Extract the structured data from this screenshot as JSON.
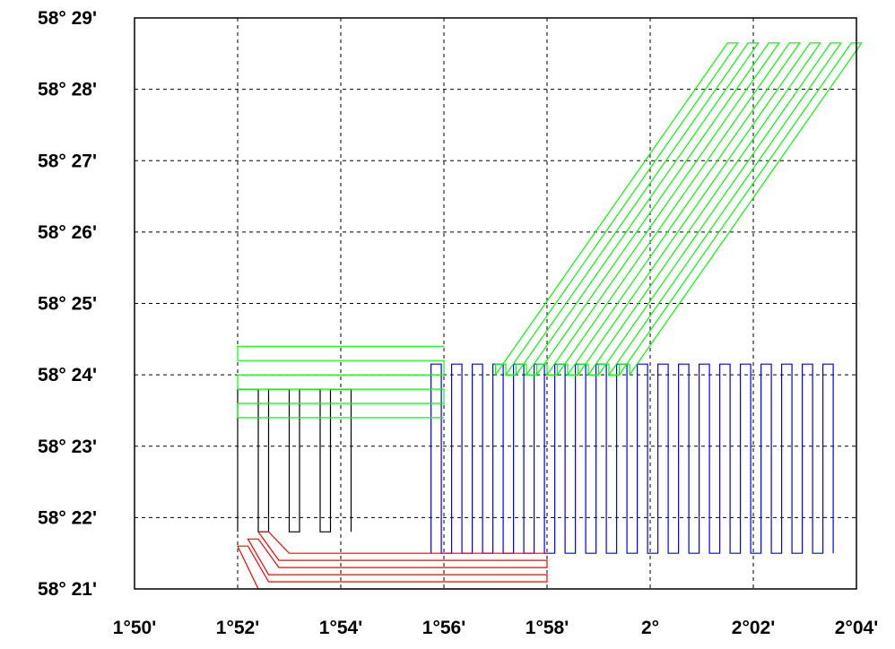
{
  "chart_data": {
    "type": "line",
    "title": "",
    "xlabel": "",
    "ylabel": "",
    "x_unit": "arcminutes of longitude past 1°50'",
    "y_unit": "arcminutes of latitude past 58°21'",
    "xlim": [
      0,
      14
    ],
    "ylim": [
      0,
      8
    ],
    "grid": true,
    "x_ticks": [
      {
        "value": 0,
        "label": "1°50'"
      },
      {
        "value": 2,
        "label": "1°52'"
      },
      {
        "value": 4,
        "label": "1°54'"
      },
      {
        "value": 6,
        "label": "1°56'"
      },
      {
        "value": 8,
        "label": "1°58'"
      },
      {
        "value": 10,
        "label": "2°"
      },
      {
        "value": 12,
        "label": "2°02'"
      },
      {
        "value": 14,
        "label": "2°04'"
      }
    ],
    "y_ticks": [
      {
        "value": 0,
        "label": "58° 21'"
      },
      {
        "value": 1,
        "label": "58° 22'"
      },
      {
        "value": 2,
        "label": "58° 23'"
      },
      {
        "value": 3,
        "label": "58° 24'"
      },
      {
        "value": 4,
        "label": "58° 25'"
      },
      {
        "value": 5,
        "label": "58° 26'"
      },
      {
        "value": 6,
        "label": "58° 27'"
      },
      {
        "value": 7,
        "label": "58° 28'"
      },
      {
        "value": 8,
        "label": "58° 29'"
      }
    ],
    "series": [
      {
        "color": "#000000",
        "points": [
          [
            2.0,
            0.8
          ],
          [
            2.0,
            2.8
          ],
          [
            2.4,
            2.8
          ],
          [
            2.4,
            0.8
          ],
          [
            2.6,
            0.8
          ],
          [
            2.6,
            2.8
          ],
          [
            3.0,
            2.8
          ],
          [
            3.0,
            0.8
          ],
          [
            3.2,
            0.8
          ],
          [
            3.2,
            2.8
          ],
          [
            3.6,
            2.8
          ],
          [
            3.6,
            0.8
          ],
          [
            3.8,
            0.8
          ],
          [
            3.8,
            2.8
          ],
          [
            4.2,
            2.8
          ],
          [
            4.2,
            0.8
          ]
        ]
      },
      {
        "color": "#0000ff",
        "points": [
          [
            5.75,
            0.5
          ],
          [
            5.75,
            3.15
          ],
          [
            5.95,
            3.15
          ],
          [
            5.95,
            0.5
          ],
          [
            6.15,
            0.5
          ],
          [
            6.15,
            3.15
          ],
          [
            6.35,
            3.15
          ],
          [
            6.35,
            0.5
          ],
          [
            6.55,
            0.5
          ],
          [
            6.55,
            3.15
          ],
          [
            6.75,
            3.15
          ],
          [
            6.75,
            0.5
          ],
          [
            6.95,
            0.5
          ],
          [
            6.95,
            3.15
          ],
          [
            7.15,
            3.15
          ],
          [
            7.15,
            0.5
          ],
          [
            7.35,
            0.5
          ],
          [
            7.35,
            3.15
          ],
          [
            7.55,
            3.15
          ],
          [
            7.55,
            0.5
          ],
          [
            7.75,
            0.5
          ],
          [
            7.75,
            3.15
          ],
          [
            7.95,
            3.15
          ],
          [
            7.95,
            0.5
          ],
          [
            8.15,
            0.5
          ],
          [
            8.15,
            3.15
          ],
          [
            8.35,
            3.15
          ],
          [
            8.35,
            0.5
          ],
          [
            8.55,
            0.5
          ],
          [
            8.55,
            3.15
          ],
          [
            8.75,
            3.15
          ],
          [
            8.75,
            0.5
          ],
          [
            8.95,
            0.5
          ],
          [
            8.95,
            3.15
          ],
          [
            9.15,
            3.15
          ],
          [
            9.15,
            0.5
          ],
          [
            9.35,
            0.5
          ],
          [
            9.35,
            3.15
          ],
          [
            9.55,
            3.15
          ],
          [
            9.55,
            0.5
          ],
          [
            9.75,
            0.5
          ],
          [
            9.75,
            3.15
          ],
          [
            9.95,
            3.15
          ],
          [
            9.95,
            0.5
          ],
          [
            10.15,
            0.5
          ],
          [
            10.15,
            3.15
          ],
          [
            10.35,
            3.15
          ],
          [
            10.35,
            0.5
          ],
          [
            10.55,
            0.5
          ],
          [
            10.55,
            3.15
          ],
          [
            10.75,
            3.15
          ],
          [
            10.75,
            0.5
          ],
          [
            10.95,
            0.5
          ],
          [
            10.95,
            3.15
          ],
          [
            11.15,
            3.15
          ],
          [
            11.15,
            0.5
          ],
          [
            11.35,
            0.5
          ],
          [
            11.35,
            3.15
          ],
          [
            11.55,
            3.15
          ],
          [
            11.55,
            0.5
          ],
          [
            11.75,
            0.5
          ],
          [
            11.75,
            3.15
          ],
          [
            11.95,
            3.15
          ],
          [
            11.95,
            0.5
          ],
          [
            12.15,
            0.5
          ],
          [
            12.15,
            3.15
          ],
          [
            12.35,
            3.15
          ],
          [
            12.35,
            0.5
          ],
          [
            12.55,
            0.5
          ],
          [
            12.55,
            3.15
          ],
          [
            12.75,
            3.15
          ],
          [
            12.75,
            0.5
          ],
          [
            12.95,
            0.5
          ],
          [
            12.95,
            3.15
          ],
          [
            13.15,
            3.15
          ],
          [
            13.15,
            0.5
          ],
          [
            13.35,
            0.5
          ],
          [
            13.35,
            3.15
          ],
          [
            13.55,
            3.15
          ],
          [
            13.55,
            0.5
          ]
        ]
      },
      {
        "color": "#00ff00",
        "points": [
          [
            6.0,
            3.4
          ],
          [
            2.0,
            3.4
          ],
          [
            2.0,
            3.2
          ],
          [
            6.0,
            3.2
          ],
          [
            6.0,
            3.0
          ],
          [
            2.0,
            3.0
          ],
          [
            2.0,
            2.8
          ],
          [
            6.0,
            2.8
          ],
          [
            6.0,
            2.6
          ],
          [
            2.0,
            2.6
          ],
          [
            2.0,
            2.4
          ],
          [
            6.0,
            2.4
          ]
        ]
      },
      {
        "color": "#00ff00",
        "points": [
          [
            7.0,
            3.0
          ],
          [
            7.0,
            3.15
          ],
          [
            7.2,
            3.15
          ],
          [
            7.2,
            3.0
          ],
          [
            7.4,
            3.0
          ],
          [
            7.4,
            3.15
          ],
          [
            7.6,
            3.15
          ],
          [
            7.6,
            3.0
          ],
          [
            7.8,
            3.0
          ],
          [
            7.8,
            3.15
          ],
          [
            8.0,
            3.15
          ],
          [
            8.0,
            3.0
          ],
          [
            8.2,
            3.0
          ],
          [
            8.2,
            3.15
          ],
          [
            8.4,
            3.15
          ],
          [
            8.4,
            3.0
          ],
          [
            8.6,
            3.0
          ],
          [
            8.6,
            3.15
          ],
          [
            8.8,
            3.15
          ],
          [
            8.8,
            3.0
          ],
          [
            9.0,
            3.0
          ],
          [
            9.0,
            3.15
          ],
          [
            9.2,
            3.15
          ],
          [
            9.2,
            3.0
          ],
          [
            9.4,
            3.0
          ],
          [
            9.4,
            3.15
          ],
          [
            9.6,
            3.15
          ],
          [
            9.6,
            3.0
          ]
        ]
      },
      {
        "color": "#00ff00",
        "points": [
          [
            7.0,
            3.0
          ],
          [
            11.5,
            7.65
          ],
          [
            11.7,
            7.65
          ],
          [
            7.2,
            3.0
          ],
          [
            7.4,
            3.0
          ],
          [
            11.9,
            7.65
          ],
          [
            12.1,
            7.65
          ],
          [
            7.6,
            3.0
          ],
          [
            7.8,
            3.0
          ],
          [
            12.3,
            7.65
          ],
          [
            12.5,
            7.65
          ],
          [
            8.0,
            3.0
          ],
          [
            8.2,
            3.0
          ],
          [
            12.7,
            7.65
          ],
          [
            12.9,
            7.65
          ],
          [
            8.4,
            3.0
          ],
          [
            8.6,
            3.0
          ],
          [
            13.1,
            7.65
          ],
          [
            13.3,
            7.65
          ],
          [
            8.8,
            3.0
          ],
          [
            9.0,
            3.0
          ],
          [
            13.5,
            7.65
          ],
          [
            13.7,
            7.65
          ],
          [
            9.2,
            3.0
          ],
          [
            9.4,
            3.0
          ],
          [
            13.9,
            7.65
          ],
          [
            14.1,
            7.65
          ],
          [
            9.6,
            3.0
          ]
        ]
      },
      {
        "color": "#ff0000",
        "points": [
          [
            8.0,
            0.5
          ],
          [
            3.0,
            0.5
          ],
          [
            2.6,
            0.8
          ],
          [
            2.4,
            0.8
          ],
          [
            2.8,
            0.4
          ],
          [
            8.0,
            0.4
          ],
          [
            8.0,
            0.3
          ],
          [
            2.8,
            0.3
          ],
          [
            2.4,
            0.7
          ],
          [
            2.2,
            0.7
          ],
          [
            2.6,
            0.2
          ],
          [
            8.0,
            0.2
          ],
          [
            8.0,
            0.1
          ],
          [
            2.6,
            0.1
          ],
          [
            2.2,
            0.6
          ],
          [
            2.0,
            0.6
          ],
          [
            2.4,
            0.0
          ],
          [
            8.0,
            0.0
          ]
        ]
      }
    ]
  }
}
